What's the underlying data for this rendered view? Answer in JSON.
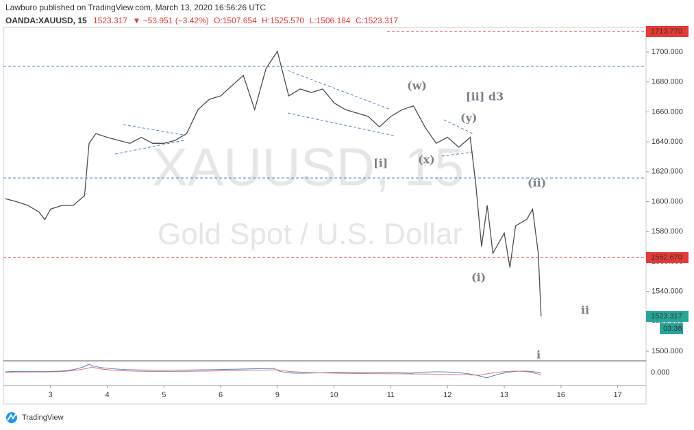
{
  "chart_data": {
    "type": "line",
    "header": {
      "published": "Lawburo published on TradingView.com, March 13, 2020 16:56:26 UTC",
      "symbol": "OANDA:XAUUSD, 15",
      "last": "1523.317",
      "change": "▼ −53.951 (−3.42%)",
      "open": "O:1507.654",
      "high": "H:1525.570",
      "low": "L:1506.184",
      "close": "C:1523.317"
    },
    "watermark": "XAUUSD, 15",
    "watermark_sub": "Gold Spot / U.S. Dollar",
    "x": [
      -0.8,
      -0.6,
      -0.4,
      -0.2,
      -0.1,
      0,
      0.2,
      0.4,
      0.6,
      0.68,
      0.8,
      1,
      1.2,
      1.4,
      1.6,
      1.8,
      2,
      2.2,
      2.4,
      2.6,
      2.8,
      3,
      3.2,
      3.4,
      3.6,
      3.8,
      4,
      4.2,
      4.4,
      4.6,
      4.8,
      5,
      5.2,
      5.4,
      5.6,
      5.8,
      6,
      6.2,
      6.4,
      6.6,
      6.8,
      7,
      7.2,
      7.4,
      7.5,
      7.6,
      7.7,
      7.8,
      8,
      8.1,
      8.2,
      8.4,
      8.5,
      8.6,
      8.65
    ],
    "values": [
      1602,
      1600,
      1597.5,
      1593,
      1588,
      1595,
      1597.5,
      1597.5,
      1604,
      1639,
      1645.5,
      1643,
      1641,
      1639,
      1643,
      1639,
      1639,
      1641,
      1645.5,
      1661.5,
      1668.4,
      1670.7,
      1677.6,
      1684.4,
      1661.5,
      1689,
      1700.5,
      1670.7,
      1675.3,
      1673,
      1675.3,
      1666,
      1661.5,
      1659.3,
      1657,
      1650,
      1657,
      1661.5,
      1664,
      1650,
      1639,
      1643,
      1636.4,
      1643,
      1611,
      1570,
      1597.5,
      1565.5,
      1579,
      1556,
      1583.8,
      1588.3,
      1595,
      1565.5,
      1523.3
    ],
    "color": "#4a4a4a",
    "xlim": [
      -0.83,
      10.5
    ],
    "xticks": [
      {
        "value": 0,
        "label": "3"
      },
      {
        "value": 1,
        "label": "4"
      },
      {
        "value": 2,
        "label": "5"
      },
      {
        "value": 3,
        "label": "6"
      },
      {
        "value": 4,
        "label": "9"
      },
      {
        "value": 5,
        "label": "10"
      },
      {
        "value": 6,
        "label": "11"
      },
      {
        "value": 7,
        "label": "12"
      },
      {
        "value": 8,
        "label": "13"
      },
      {
        "value": 9,
        "label": "16"
      },
      {
        "value": 10,
        "label": "17"
      }
    ],
    "ylim": [
      1493.6,
      1716.5
    ],
    "yticks": [
      {
        "value": 1500,
        "label": "1500.000"
      },
      {
        "value": 1520,
        "label": "1520.000"
      },
      {
        "value": 1540,
        "label": "1540.000"
      },
      {
        "value": 1560,
        "label": "1560.000"
      },
      {
        "value": 1580,
        "label": "1580.000"
      },
      {
        "value": 1600,
        "label": "1600.000"
      },
      {
        "value": 1620,
        "label": "1620.000"
      },
      {
        "value": 1640,
        "label": "1640.000"
      },
      {
        "value": 1660,
        "label": "1660.000"
      },
      {
        "value": 1680,
        "label": "1680.000"
      },
      {
        "value": 1700,
        "label": "1700.000"
      }
    ],
    "price_tags": [
      {
        "value": 1713.77,
        "label": "1713.770",
        "color": "#e53935"
      },
      {
        "value": 1562.67,
        "label": "1562.670",
        "color": "#e53935"
      },
      {
        "value": 1523.317,
        "label": "1523.317",
        "color": "#26a69a"
      }
    ],
    "countdown": "03:36",
    "levels": [
      1690.4,
      1615.8
    ],
    "oscillator_tick": "0.000",
    "waves": [
      "(w)",
      "[ii] d3",
      "(y)",
      "[i]",
      "(x)",
      "(ii)",
      "(i)",
      "ii",
      "i"
    ],
    "footer": "TradingView"
  }
}
